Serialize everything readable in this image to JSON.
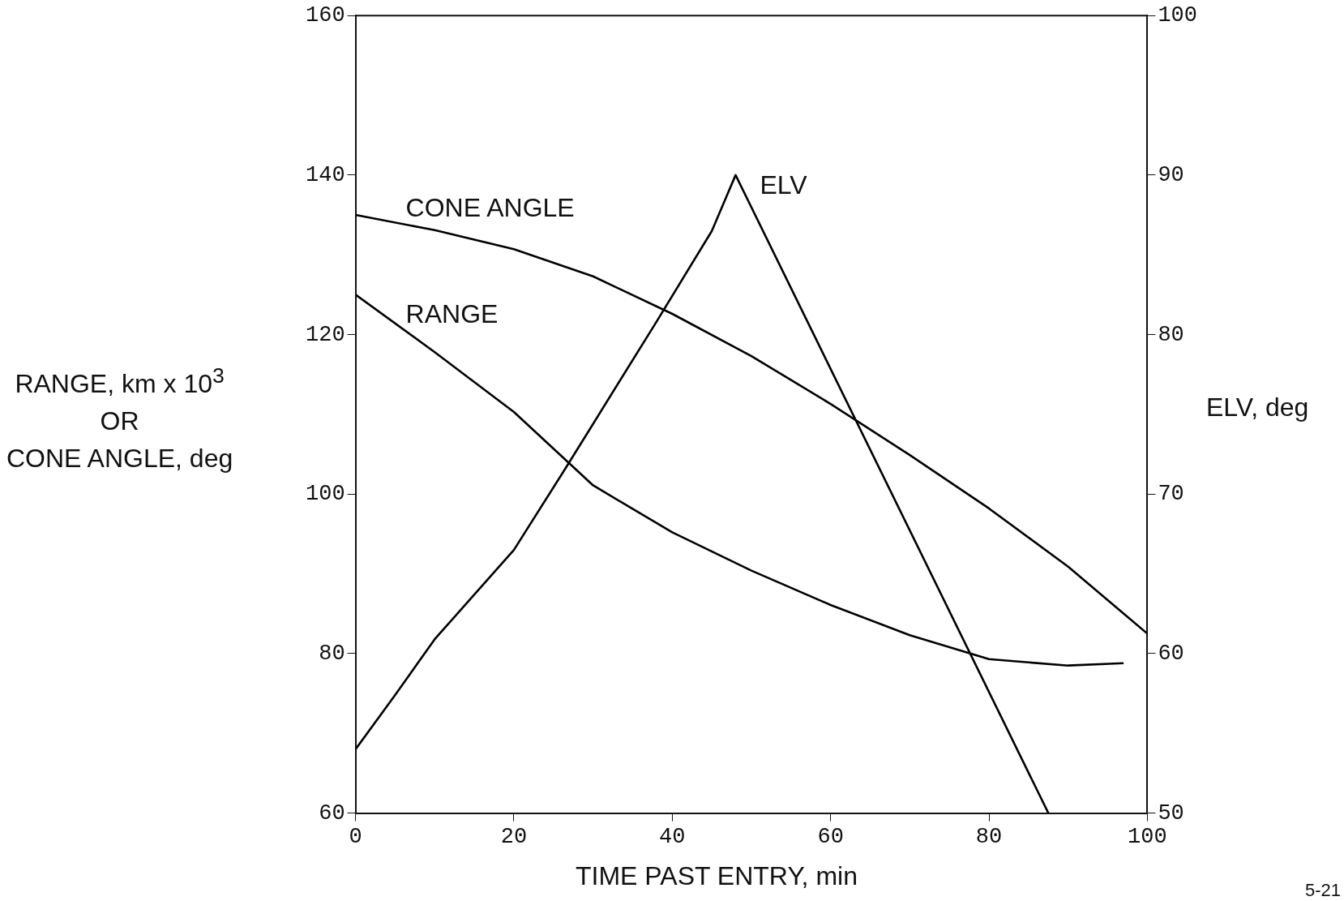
{
  "chart_data": {
    "type": "line",
    "xlabel": "TIME PAST ENTRY, min",
    "ylabel": "RANGE, km x 10$^{3}$\nOR\nCONE ANGLE, deg",
    "y2label": "ELV, deg",
    "xlim": [
      0,
      100
    ],
    "xticks": [
      0,
      20,
      40,
      60,
      80,
      100
    ],
    "ylim": [
      60,
      160
    ],
    "yticks": [
      60,
      80,
      100,
      120,
      140,
      160
    ],
    "y2lim": [
      50,
      100
    ],
    "y2ticks": [
      50,
      60,
      70,
      80,
      90,
      100
    ],
    "grid": false,
    "legend": false,
    "marker": "none",
    "line_style": "solid",
    "series": [
      {
        "name": "CONE ANGLE",
        "color": "#000000",
        "x": [
          0,
          10,
          20,
          30,
          40,
          50,
          60,
          70,
          80,
          90,
          100
        ],
        "values": [
          135,
          133.1,
          130.7,
          127.3,
          122.6,
          117.3,
          111.3,
          104.9,
          98.2,
          90.9,
          82.5
        ]
      },
      {
        "name": "RANGE",
        "color": "#000000",
        "x": [
          0,
          10,
          20,
          30,
          40,
          50,
          60,
          70,
          80,
          90,
          97
        ],
        "values": [
          125,
          117.8,
          110.3,
          101.1,
          95.2,
          90.4,
          86.1,
          82.3,
          79.3,
          78.5,
          78.8
        ]
      },
      {
        "name": "ELV",
        "color": "#000000",
        "axis": "y2",
        "x": [
          0,
          5,
          10,
          15,
          20,
          26.5,
          30,
          38,
          45,
          48,
          87.5
        ],
        "values": [
          54,
          57.4,
          60.9,
          63.7,
          66.5,
          71.6,
          74.4,
          80.8,
          86.5,
          90,
          50
        ]
      }
    ],
    "annotations": [
      "5-21"
    ]
  }
}
